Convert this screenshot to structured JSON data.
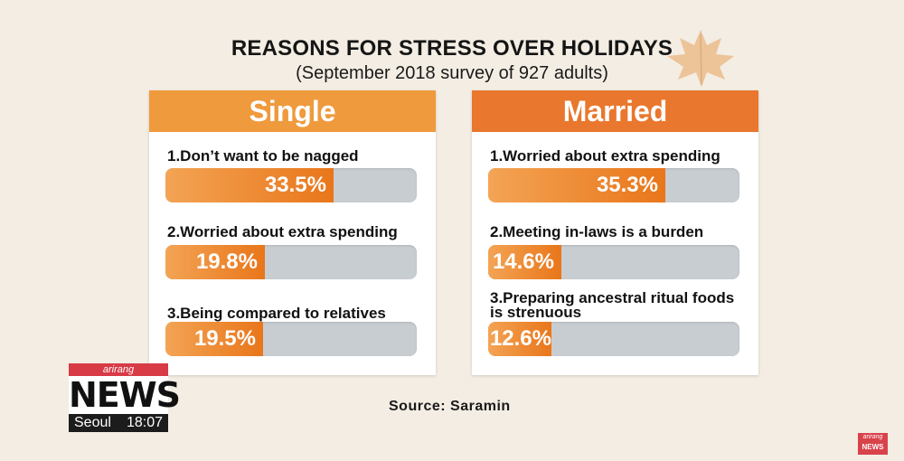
{
  "title": "REASONS FOR STRESS OVER HOLIDAYS",
  "subtitle": "(September 2018 survey of 927 adults)",
  "source": "Source: Saramin",
  "colors": {
    "single_header": "#ef9a3d",
    "married_header": "#e9772d",
    "bar_fill": "#ec7f24",
    "bar_track": "#c8cdd2"
  },
  "logo": {
    "brand": "arirang",
    "news": "NEWS",
    "city": "Seoul",
    "time": "18:07"
  },
  "corner_badge": {
    "brand": "arirang",
    "label": "NEWS"
  },
  "chart_data": [
    {
      "type": "bar",
      "title": "Single",
      "unit": "%",
      "categories": [
        "1.Don’t want to be nagged",
        "2.Worried about extra spending",
        "3.Being compared to relatives"
      ],
      "values": [
        33.5,
        19.8,
        19.5
      ],
      "value_labels": [
        "33.5%",
        "19.8%",
        "19.5%"
      ]
    },
    {
      "type": "bar",
      "title": "Married",
      "unit": "%",
      "categories": [
        "1.Worried about extra spending",
        "2.Meeting in-laws is a burden",
        "3.Preparing ancestral ritual foods is strenuous"
      ],
      "values": [
        35.3,
        14.6,
        12.6
      ],
      "value_labels": [
        "35.3%",
        "14.6%",
        "12.6%"
      ]
    }
  ]
}
